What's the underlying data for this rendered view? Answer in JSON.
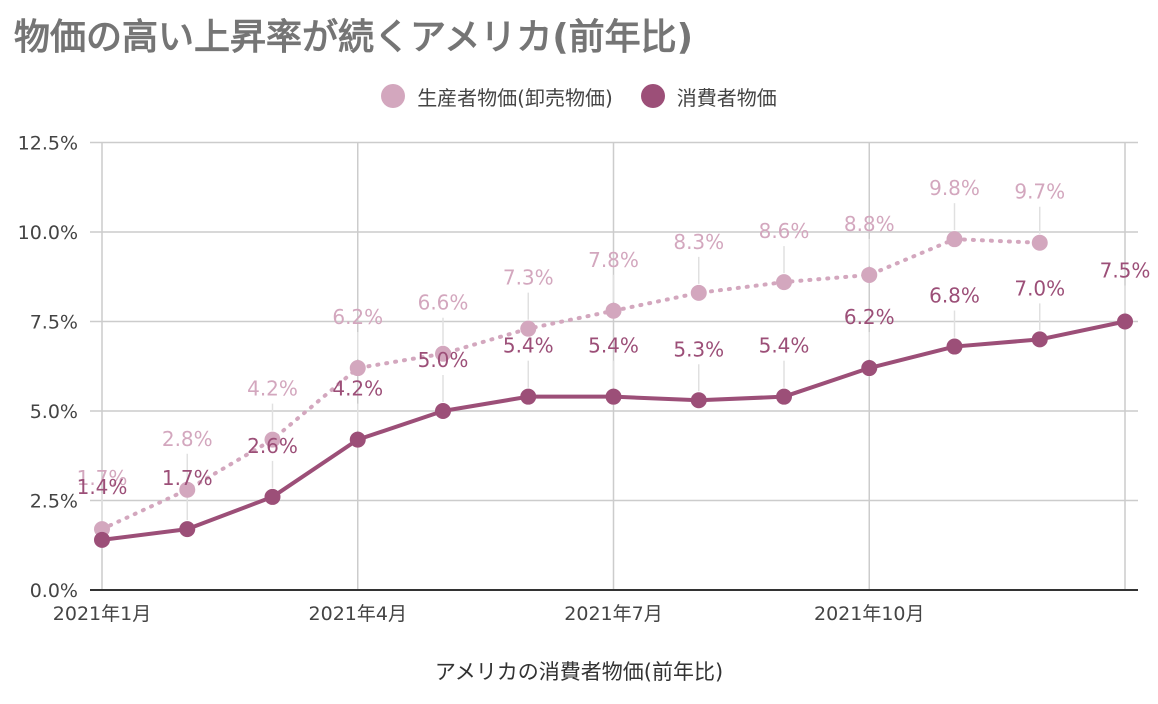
{
  "chart_data": {
    "type": "line",
    "title": "物価の高い上昇率が続くアメリカ(前年比)",
    "xlabel": "アメリカの消費者物価(前年比)",
    "ylabel": "",
    "ylim": [
      0,
      12.5
    ],
    "y_ticks": [
      "0.0%",
      "2.5%",
      "5.0%",
      "7.5%",
      "10.0%",
      "12.5%"
    ],
    "y_tick_values": [
      0,
      2.5,
      5,
      7.5,
      10,
      12.5
    ],
    "x_ticks": [
      "2021年1月",
      "2021年4月",
      "2021年7月",
      "2021年10月"
    ],
    "x_tick_indices": [
      0,
      3,
      6,
      9
    ],
    "x": [
      "2021-01",
      "2021-02",
      "2021-03",
      "2021-04",
      "2021-05",
      "2021-06",
      "2021-07",
      "2021-08",
      "2021-09",
      "2021-10",
      "2021-11",
      "2021-12",
      "2022-01"
    ],
    "grid": true,
    "legend_position": "top",
    "series": [
      {
        "name": "生産者物価(卸売物価)",
        "color": "#d3a7be",
        "style": "dotted",
        "values": [
          1.7,
          2.8,
          4.2,
          6.2,
          6.6,
          7.3,
          7.8,
          8.3,
          8.6,
          8.8,
          9.8,
          9.7,
          null
        ],
        "labels": [
          "1.7%",
          "2.8%",
          "4.2%",
          "6.2%",
          "6.6%",
          "7.3%",
          "7.8%",
          "8.3%",
          "8.6%",
          "8.8%",
          "9.8%",
          "9.7%",
          ""
        ]
      },
      {
        "name": "消費者物価",
        "color": "#9c4f78",
        "style": "solid",
        "values": [
          1.4,
          1.7,
          2.6,
          4.2,
          5.0,
          5.4,
          5.4,
          5.3,
          5.4,
          6.2,
          6.8,
          7.0,
          7.5
        ],
        "labels": [
          "1.4%",
          "1.7%",
          "2.6%",
          "4.2%",
          "5.0%",
          "5.4%",
          "5.4%",
          "5.3%",
          "5.4%",
          "6.2%",
          "6.8%",
          "7.0%",
          "7.5%"
        ]
      }
    ]
  }
}
